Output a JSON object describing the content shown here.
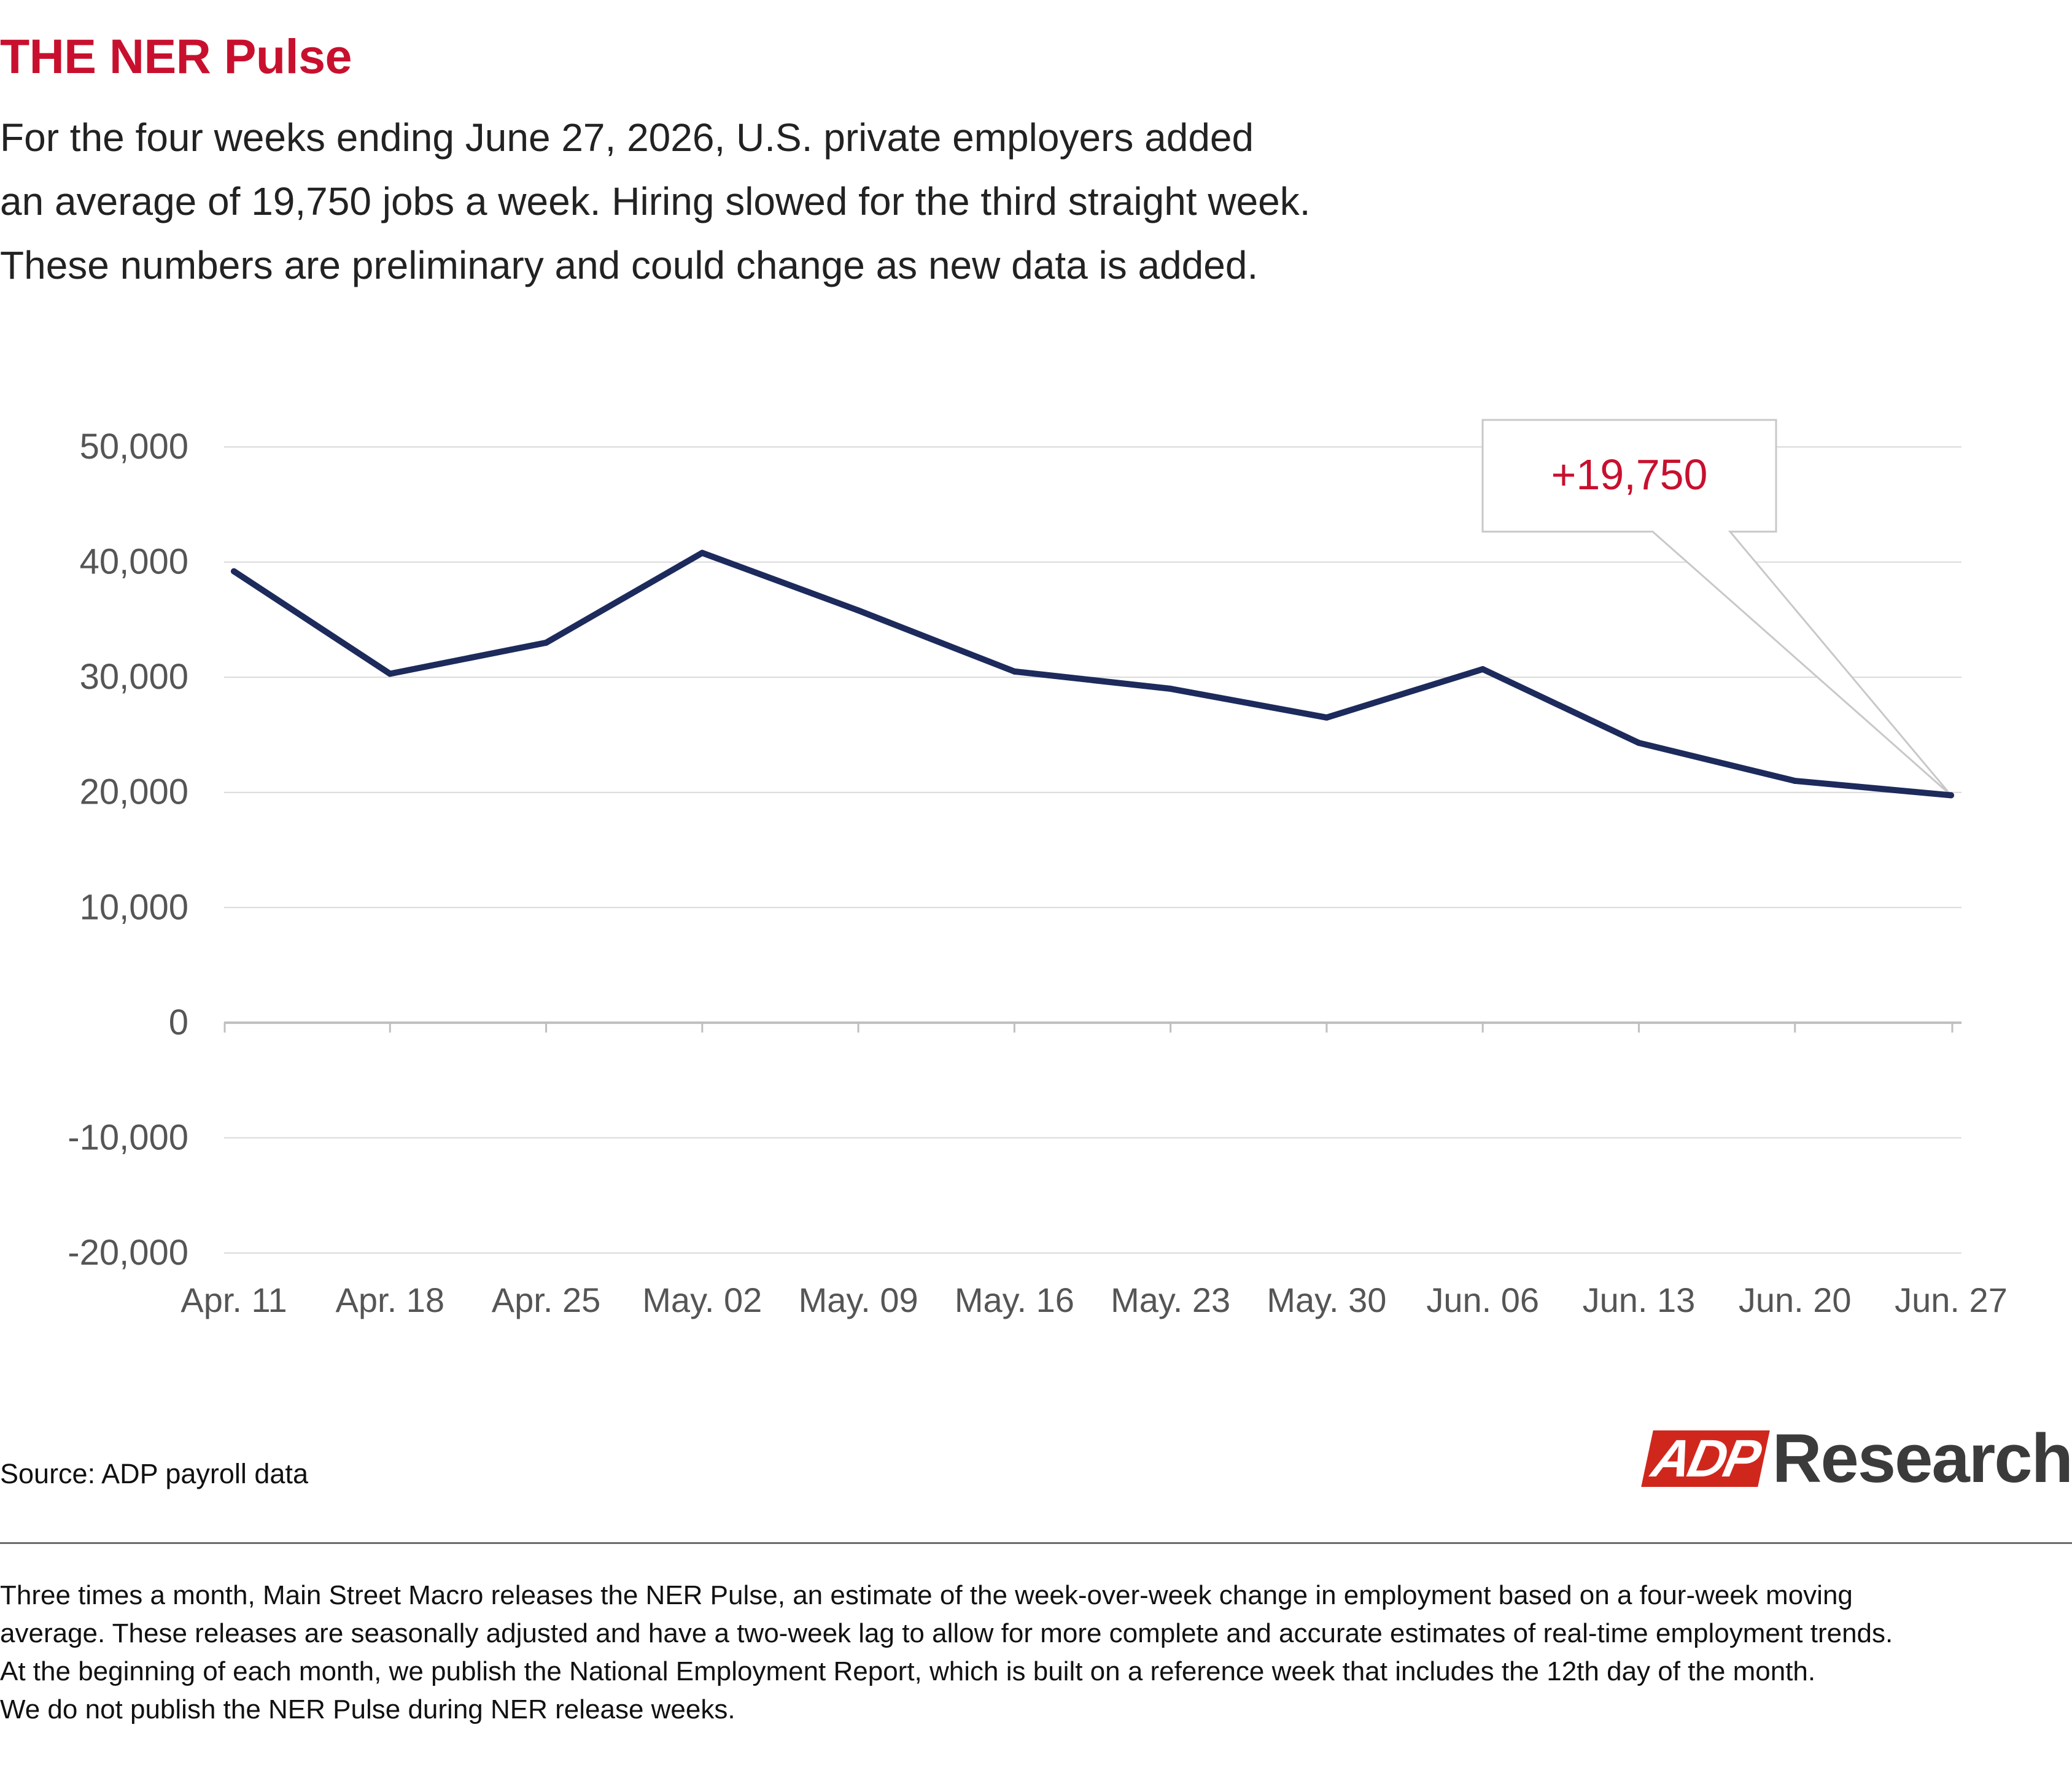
{
  "header": {
    "title": "THE NER Pulse",
    "intro_lines": [
      "For the four weeks ending June 27, 2026, U.S. private employers added",
      "an average of 19,750 jobs a week. Hiring slowed for the third straight week.",
      "These numbers are preliminary and could change as new data is added."
    ]
  },
  "chart_data": {
    "type": "line",
    "categories": [
      "Apr. 11",
      "Apr. 18",
      "Apr. 25",
      "May. 02",
      "May. 09",
      "May. 16",
      "May. 23",
      "May. 30",
      "Jun. 06",
      "Jun. 13",
      "Jun. 20",
      "Jun. 27"
    ],
    "series": [
      {
        "values": [
          39200,
          30300,
          33000,
          40800,
          35800,
          30500,
          29000,
          26500,
          30700,
          24300,
          21000,
          19750
        ]
      }
    ],
    "ylim": [
      -20000,
      50000
    ],
    "yticks": [
      50000,
      40000,
      30000,
      20000,
      10000,
      0,
      -10000,
      -20000
    ],
    "ytick_labels": [
      "50,000",
      "40,000",
      "30,000",
      "20,000",
      "10,000",
      "0",
      "-10,000",
      "-20,000"
    ],
    "grid": true,
    "annotation": {
      "text": "+19,750",
      "target_category": "Jun. 27"
    },
    "colors": {
      "line": "#1d2a5c",
      "annotation_text": "#c8102e",
      "grid": "#d9d9d9",
      "zero_axis": "#bfbfbf"
    }
  },
  "source": "Source: ADP payroll data",
  "logo": {
    "mark": "ADP",
    "word": "Research"
  },
  "footnote_lines": [
    "Three times a month, Main Street Macro releases the NER Pulse, an estimate of the week-over-week change in employment based on a four-week moving",
    "average. These releases are seasonally adjusted and have a two-week lag to allow for more complete and accurate estimates of real-time employment trends.",
    "At the beginning of each month, we publish the National Employment Report, which is built on a reference week that includes the 12th day of the month.",
    "We do not publish the NER Pulse during NER release weeks."
  ]
}
